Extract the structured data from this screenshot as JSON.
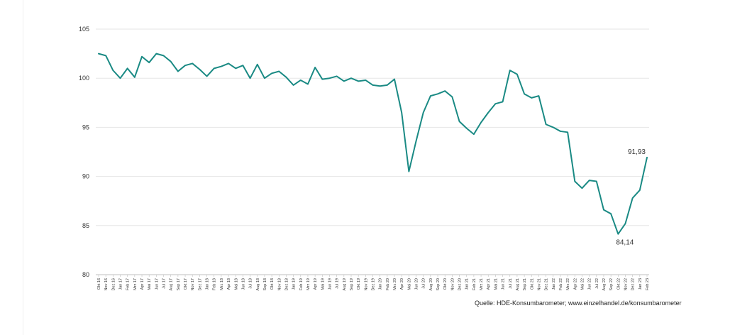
{
  "chart_data": {
    "type": "line",
    "title": "",
    "xlabel": "",
    "ylabel": "",
    "ylim": [
      80,
      105
    ],
    "yticks": [
      "80",
      "85",
      "90",
      "95",
      "100",
      "105"
    ],
    "grid": true,
    "line_color": "#1a8a84",
    "categories": [
      "Okt 16",
      "Nov 16",
      "Dez 16",
      "Jan 17",
      "Feb 17",
      "Mrz 17",
      "Apr 17",
      "Mai 17",
      "Jun 17",
      "Jul 17",
      "Aug 17",
      "Sep 17",
      "Okt 17",
      "Nov 17",
      "Dez 17",
      "Jan 18",
      "Feb 18",
      "Mrz 18",
      "Apr 18",
      "Mai 18",
      "Jun 18",
      "Jul 18",
      "Aug 18",
      "Sep 18",
      "Okt 18",
      "Nov 18",
      "Dez 18",
      "Jan 19",
      "Feb 19",
      "Mrz 19",
      "Apr 19",
      "Mai 19",
      "Jun 19",
      "Jul 19",
      "Aug 19",
      "Sep 19",
      "Okt 19",
      "Nov 19",
      "Dez 19",
      "Jan 20",
      "Feb 20",
      "Mrz 20",
      "Apr 20",
      "Mai 20",
      "Jun 20",
      "Jul 20",
      "Aug 20",
      "Sep 20",
      "Okt 20",
      "Nov 20",
      "Dez 20",
      "Jan 21",
      "Feb 21",
      "Mrz 21",
      "Apr 21",
      "Mai 21",
      "Jun 21",
      "Jul 21",
      "Aug 21",
      "Sep 21",
      "Okt 21",
      "Nov 21",
      "Dez 21",
      "Jan 22",
      "Feb 22",
      "Mrz 22",
      "Apr 22",
      "Mai 22",
      "Jun 22",
      "Jul 22",
      "Aug 22",
      "Sep 22",
      "Okt 22",
      "Nov 22",
      "Dez 22",
      "Jan 23",
      "Feb 23"
    ],
    "values": [
      102.5,
      102.3,
      100.8,
      100.0,
      101.0,
      100.1,
      102.2,
      101.6,
      102.5,
      102.3,
      101.7,
      100.7,
      101.3,
      101.5,
      100.9,
      100.2,
      101.0,
      101.2,
      101.5,
      101.0,
      101.3,
      100.0,
      101.4,
      100.0,
      100.5,
      100.7,
      100.1,
      99.3,
      99.8,
      99.4,
      101.1,
      99.9,
      100.0,
      100.2,
      99.7,
      100.0,
      99.7,
      99.8,
      99.3,
      99.2,
      99.3,
      99.9,
      96.5,
      90.5,
      93.6,
      96.5,
      98.2,
      98.4,
      98.7,
      98.1,
      95.6,
      94.9,
      94.3,
      95.5,
      96.5,
      97.4,
      97.6,
      100.8,
      100.4,
      98.4,
      98.0,
      98.2,
      95.3,
      95.0,
      94.6,
      94.5,
      89.5,
      88.8,
      89.6,
      89.5,
      86.6,
      86.2,
      84.14,
      85.2,
      87.8,
      88.6,
      91.93
    ],
    "data_labels": [
      {
        "index": 76,
        "text": "91,93"
      },
      {
        "index": 72,
        "text": "84,14"
      }
    ]
  },
  "source_note": "Quelle: HDE-Konsumbarometer; www.einzelhandel.de/konsumbarometer"
}
